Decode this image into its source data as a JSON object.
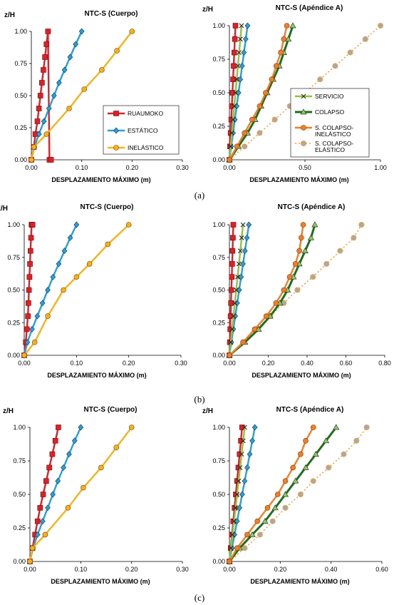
{
  "colors": {
    "ruaumoko": "#d8232a",
    "estatico": "#2a9fd8",
    "inelastico": "#f5b21a",
    "servicio": "#8fc43c",
    "colapso": "#1f6e1f",
    "sc_inelastico": "#f07f2a",
    "sc_elastico": "#f3a040",
    "sc_elastico_marker": "#a8a8a8"
  },
  "chart_data": [
    {
      "panel": "a-left",
      "type": "line",
      "title": "NTC-S (Cuerpo)",
      "xlabel": "DESPLAZAMIENTO MÁXIMO (m)",
      "ylabel": "z/H",
      "xlim": [
        0,
        0.3
      ],
      "ylim": [
        0,
        1
      ],
      "xticks": [
        "0.00",
        "0.10",
        "0.20",
        "0.30"
      ],
      "yticks": [
        "0.00",
        "0.25",
        "0.50",
        "0.75",
        "1.00"
      ],
      "legend": "inside-right",
      "series": [
        {
          "name": "RUAUMOKO",
          "key": "ruaumoko",
          "marker": "square",
          "style": "solid",
          "x": [
            0.0,
            0.005,
            0.008,
            0.012,
            0.015,
            0.018,
            0.021,
            0.024,
            0.027,
            0.03,
            0.033,
            0.036,
            0.039
          ],
          "y": [
            0.0,
            0.1,
            0.2,
            0.3,
            0.4,
            0.5,
            0.6,
            0.7,
            0.8,
            0.9,
            1.0,
            0.0,
            0.0
          ]
        },
        {
          "name": "ESTÁTICO",
          "key": "estatico",
          "marker": "diamond",
          "style": "solid",
          "x": [
            0.0,
            0.006,
            0.015,
            0.025,
            0.035,
            0.045,
            0.055,
            0.066,
            0.077,
            0.088,
            0.1
          ],
          "y": [
            0.0,
            0.1,
            0.2,
            0.3,
            0.4,
            0.5,
            0.6,
            0.7,
            0.8,
            0.9,
            1.0
          ]
        },
        {
          "name": "INELÁSTICO",
          "key": "inelastico",
          "marker": "circle",
          "style": "solid",
          "x": [
            0.0,
            0.005,
            0.03,
            0.075,
            0.105,
            0.14,
            0.17,
            0.2
          ],
          "y": [
            0.0,
            0.1,
            0.2,
            0.4,
            0.55,
            0.7,
            0.85,
            1.0
          ]
        }
      ]
    },
    {
      "panel": "a-right",
      "type": "line",
      "title": "NTC-S (Apéndice A)",
      "xlabel": "DESPLAZAMIENTO MÁXIMO (m)",
      "ylabel": "z/H",
      "xlim": [
        0,
        1
      ],
      "ylim": [
        0,
        1
      ],
      "xticks": [
        "0.00",
        "0.50",
        "1.00"
      ],
      "yticks": [
        "0.00",
        "0.25",
        "0.50",
        "0.75",
        "1.00"
      ],
      "legend": "inside-right",
      "series": [
        {
          "name": "RUAUMOKO",
          "key": "ruaumoko",
          "marker": "square",
          "style": "solid",
          "in_legend": false,
          "x": [
            0.0,
            0.004,
            0.008,
            0.012,
            0.016,
            0.02,
            0.024,
            0.028,
            0.032,
            0.036,
            0.04
          ],
          "y": [
            0.0,
            0.1,
            0.2,
            0.3,
            0.4,
            0.5,
            0.6,
            0.7,
            0.8,
            0.9,
            1.0
          ]
        },
        {
          "name": "ESTÁTICO",
          "key": "estatico",
          "marker": "diamond",
          "style": "solid",
          "in_legend": false,
          "x": [
            0.0,
            0.012,
            0.024,
            0.036,
            0.048,
            0.06,
            0.072,
            0.084,
            0.096,
            0.108,
            0.12
          ],
          "y": [
            0.0,
            0.1,
            0.2,
            0.3,
            0.4,
            0.5,
            0.6,
            0.7,
            0.8,
            0.9,
            1.0
          ]
        },
        {
          "name": "SERVICIO",
          "key": "servicio",
          "marker": "x",
          "style": "solid",
          "x": [
            0.0,
            0.008,
            0.016,
            0.024,
            0.032,
            0.04,
            0.048,
            0.056,
            0.064,
            0.072,
            0.08
          ],
          "y": [
            0.0,
            0.1,
            0.2,
            0.3,
            0.4,
            0.5,
            0.6,
            0.7,
            0.8,
            0.9,
            1.0
          ]
        },
        {
          "name": "COLAPSO",
          "key": "colapso",
          "marker": "triangle",
          "style": "solid",
          "x": [
            0.0,
            0.06,
            0.12,
            0.17,
            0.21,
            0.25,
            0.29,
            0.33,
            0.36,
            0.39,
            0.42
          ],
          "y": [
            0.0,
            0.1,
            0.2,
            0.3,
            0.4,
            0.5,
            0.6,
            0.7,
            0.8,
            0.9,
            1.0
          ]
        },
        {
          "name": "S. COLAPSO-INELÁSTICO",
          "key": "sc_inelastico",
          "marker": "circle",
          "style": "solid",
          "x": [
            0.0,
            0.05,
            0.1,
            0.15,
            0.2,
            0.24,
            0.28,
            0.31,
            0.34,
            0.36,
            0.38
          ],
          "y": [
            0.0,
            0.1,
            0.2,
            0.3,
            0.4,
            0.5,
            0.6,
            0.7,
            0.8,
            0.9,
            1.0
          ]
        },
        {
          "name": "S. COLAPSO-ELÁSTICO",
          "key": "sc_elastico",
          "marker": "circle-gray",
          "style": "dotted",
          "x": [
            0.0,
            0.1,
            0.2,
            0.3,
            0.4,
            0.5,
            0.6,
            0.7,
            0.8,
            0.9,
            1.0
          ],
          "y": [
            0.0,
            0.1,
            0.2,
            0.3,
            0.4,
            0.5,
            0.6,
            0.7,
            0.8,
            0.9,
            1.0
          ]
        }
      ]
    },
    {
      "panel": "b-left",
      "type": "line",
      "title": "NTC-S (Cuerpo)",
      "xlabel": "DESPLAZAMIENTO MÁXIMO (m)",
      "ylabel": "z/H",
      "xlim": [
        0,
        0.3
      ],
      "ylim": [
        0,
        1
      ],
      "xticks": [
        "0.00",
        "0.10",
        "0.20",
        "0.30"
      ],
      "yticks": [
        "0.00",
        "0.25",
        "0.50",
        "0.75",
        "1.00"
      ],
      "legend": "none",
      "series": [
        {
          "name": "RUAUMOKO",
          "key": "ruaumoko",
          "marker": "square",
          "style": "solid",
          "x": [
            0.0,
            0.003,
            0.005,
            0.007,
            0.008,
            0.009,
            0.01,
            0.011,
            0.012,
            0.013,
            0.014,
            0.015,
            0.016
          ],
          "y": [
            0.0,
            0.1,
            0.2,
            0.3,
            0.4,
            0.5,
            0.6,
            0.7,
            0.8,
            0.9,
            1.0,
            1.0,
            1.0
          ]
        },
        {
          "name": "ESTÁTICO",
          "key": "estatico",
          "marker": "diamond",
          "style": "solid",
          "x": [
            0.0,
            0.006,
            0.015,
            0.025,
            0.035,
            0.045,
            0.055,
            0.066,
            0.077,
            0.088,
            0.1
          ],
          "y": [
            0.0,
            0.1,
            0.2,
            0.3,
            0.4,
            0.5,
            0.6,
            0.7,
            0.8,
            0.9,
            1.0
          ]
        },
        {
          "name": "INELÁSTICO",
          "key": "inelastico",
          "marker": "circle",
          "style": "solid",
          "x": [
            0.0,
            0.02,
            0.045,
            0.075,
            0.1,
            0.125,
            0.16,
            0.2
          ],
          "y": [
            0.0,
            0.1,
            0.3,
            0.5,
            0.6,
            0.7,
            0.85,
            1.0
          ]
        }
      ]
    },
    {
      "panel": "b-right",
      "type": "line",
      "title": "NTC-S (Apéndice  A)",
      "xlabel": "DESPLAZAMIENTO MÁXIMO (m)",
      "ylabel": "",
      "xlim": [
        0,
        0.8
      ],
      "ylim": [
        0,
        1
      ],
      "xticks": [
        "0.00",
        "0.20",
        "0.40",
        "0.60",
        "0.80"
      ],
      "yticks": [
        "0.00",
        "0.25",
        "0.50",
        "0.75",
        "1.00"
      ],
      "legend": "none",
      "series": [
        {
          "name": "RUAUMOKO",
          "key": "ruaumoko",
          "marker": "square",
          "style": "solid",
          "x": [
            0.0,
            0.002,
            0.004,
            0.006,
            0.008,
            0.01,
            0.012,
            0.014,
            0.016,
            0.018,
            0.02
          ],
          "y": [
            0.0,
            0.1,
            0.2,
            0.3,
            0.4,
            0.5,
            0.6,
            0.7,
            0.8,
            0.9,
            1.0
          ]
        },
        {
          "name": "ESTÁTICO",
          "key": "estatico",
          "marker": "diamond",
          "style": "solid",
          "x": [
            0.0,
            0.01,
            0.02,
            0.03,
            0.04,
            0.05,
            0.06,
            0.07,
            0.08,
            0.09,
            0.1
          ],
          "y": [
            0.0,
            0.1,
            0.2,
            0.3,
            0.4,
            0.5,
            0.6,
            0.7,
            0.8,
            0.9,
            1.0
          ]
        },
        {
          "name": "SERVICIO",
          "key": "servicio",
          "marker": "x",
          "style": "solid",
          "x": [
            0.0,
            0.007,
            0.014,
            0.021,
            0.028,
            0.035,
            0.042,
            0.049,
            0.056,
            0.063,
            0.07
          ],
          "y": [
            0.0,
            0.1,
            0.2,
            0.3,
            0.4,
            0.5,
            0.6,
            0.7,
            0.8,
            0.9,
            1.0
          ]
        },
        {
          "name": "COLAPSO",
          "key": "colapso",
          "marker": "triangle",
          "style": "solid",
          "x": [
            0.0,
            0.08,
            0.15,
            0.21,
            0.26,
            0.3,
            0.33,
            0.36,
            0.39,
            0.42,
            0.44
          ],
          "y": [
            0.0,
            0.1,
            0.2,
            0.3,
            0.4,
            0.5,
            0.6,
            0.7,
            0.8,
            0.9,
            1.0
          ]
        },
        {
          "name": "S. COLAPSO-INELÁSTICO",
          "key": "sc_inelastico",
          "marker": "circle",
          "style": "solid",
          "x": [
            0.0,
            0.07,
            0.13,
            0.19,
            0.24,
            0.28,
            0.31,
            0.34,
            0.36,
            0.37,
            0.38
          ],
          "y": [
            0.0,
            0.1,
            0.2,
            0.3,
            0.4,
            0.5,
            0.6,
            0.7,
            0.8,
            0.9,
            1.0
          ]
        },
        {
          "name": "S. COLAPSO-ELÁSTICO",
          "key": "sc_elastico",
          "marker": "circle-gray",
          "style": "dotted",
          "x": [
            0.0,
            0.07,
            0.14,
            0.21,
            0.28,
            0.35,
            0.43,
            0.5,
            0.57,
            0.64,
            0.68
          ],
          "y": [
            0.0,
            0.1,
            0.2,
            0.3,
            0.4,
            0.5,
            0.6,
            0.7,
            0.8,
            0.9,
            1.0
          ]
        }
      ]
    },
    {
      "panel": "c-left",
      "type": "line",
      "title": "NTC-S (Cuerpo)",
      "xlabel": "DESPLAZAMIENTO MÁXIMO (m)",
      "ylabel": "z/H",
      "xlim": [
        0,
        0.3
      ],
      "ylim": [
        0,
        1
      ],
      "xticks": [
        "0.00",
        "0.10",
        "0.20",
        "0.30"
      ],
      "yticks": [
        "0.00",
        "0.25",
        "0.50",
        "0.75",
        "1.00"
      ],
      "legend": "none",
      "series": [
        {
          "name": "RUAUMOKO",
          "key": "ruaumoko",
          "marker": "square",
          "style": "solid",
          "x": [
            0.0,
            0.005,
            0.01,
            0.015,
            0.02,
            0.026,
            0.032,
            0.038,
            0.044,
            0.05,
            0.056
          ],
          "y": [
            0.0,
            0.1,
            0.2,
            0.3,
            0.4,
            0.5,
            0.6,
            0.7,
            0.8,
            0.9,
            1.0
          ]
        },
        {
          "name": "ESTÁTICO",
          "key": "estatico",
          "marker": "diamond",
          "style": "solid",
          "x": [
            0.0,
            0.006,
            0.015,
            0.025,
            0.035,
            0.045,
            0.055,
            0.066,
            0.077,
            0.088,
            0.1
          ],
          "y": [
            0.0,
            0.1,
            0.2,
            0.3,
            0.4,
            0.5,
            0.6,
            0.7,
            0.8,
            0.9,
            1.0
          ]
        },
        {
          "name": "INELÁSTICO",
          "key": "inelastico",
          "marker": "circle",
          "style": "solid",
          "x": [
            0.0,
            0.005,
            0.03,
            0.075,
            0.105,
            0.14,
            0.17,
            0.2
          ],
          "y": [
            0.0,
            0.1,
            0.2,
            0.4,
            0.55,
            0.7,
            0.85,
            1.0
          ]
        }
      ]
    },
    {
      "panel": "c-right",
      "type": "line",
      "title": "NTC-S (Apéndice  A)",
      "xlabel": "DESPLAZAMIENTO MÁXIMO (m)",
      "ylabel": "z/H",
      "xlim": [
        0,
        0.6
      ],
      "ylim": [
        0,
        1
      ],
      "xticks": [
        "0.00",
        "0.20",
        "0.40",
        "0.60"
      ],
      "yticks": [
        "0.00",
        "0.25",
        "0.50",
        "0.75",
        "1.00"
      ],
      "legend": "none",
      "series": [
        {
          "name": "RUAUMOKO",
          "key": "ruaumoko",
          "marker": "square",
          "style": "solid",
          "x": [
            0.0,
            0.005,
            0.01,
            0.015,
            0.02,
            0.025,
            0.03,
            0.035,
            0.04,
            0.045,
            0.05
          ],
          "y": [
            0.0,
            0.1,
            0.2,
            0.3,
            0.4,
            0.5,
            0.6,
            0.7,
            0.8,
            0.9,
            1.0
          ]
        },
        {
          "name": "ESTÁTICO",
          "key": "estatico",
          "marker": "diamond",
          "style": "solid",
          "x": [
            0.0,
            0.01,
            0.02,
            0.03,
            0.04,
            0.05,
            0.06,
            0.07,
            0.08,
            0.09,
            0.1
          ],
          "y": [
            0.0,
            0.1,
            0.2,
            0.3,
            0.4,
            0.5,
            0.6,
            0.7,
            0.8,
            0.9,
            1.0
          ]
        },
        {
          "name": "SERVICIO",
          "key": "servicio",
          "marker": "x",
          "style": "solid",
          "x": [
            0.0,
            0.006,
            0.012,
            0.018,
            0.024,
            0.03,
            0.036,
            0.042,
            0.048,
            0.054,
            0.06
          ],
          "y": [
            0.0,
            0.1,
            0.2,
            0.3,
            0.4,
            0.5,
            0.6,
            0.7,
            0.8,
            0.9,
            1.0
          ]
        },
        {
          "name": "COLAPSO",
          "key": "colapso",
          "marker": "triangle",
          "style": "solid",
          "x": [
            0.0,
            0.04,
            0.09,
            0.14,
            0.18,
            0.22,
            0.26,
            0.3,
            0.34,
            0.38,
            0.42
          ],
          "y": [
            0.0,
            0.1,
            0.2,
            0.3,
            0.4,
            0.5,
            0.6,
            0.7,
            0.8,
            0.9,
            1.0
          ]
        },
        {
          "name": "S. COLAPSO-INELÁSTICO",
          "key": "sc_inelastico",
          "marker": "circle",
          "style": "solid",
          "x": [
            0.0,
            0.03,
            0.07,
            0.11,
            0.15,
            0.19,
            0.22,
            0.25,
            0.28,
            0.3,
            0.33
          ],
          "y": [
            0.0,
            0.1,
            0.2,
            0.3,
            0.4,
            0.5,
            0.6,
            0.7,
            0.8,
            0.9,
            1.0
          ]
        },
        {
          "name": "S. COLAPSO-ELÁSTICO",
          "key": "sc_elastico",
          "marker": "circle-gray",
          "style": "dotted",
          "x": [
            0.0,
            0.06,
            0.12,
            0.17,
            0.22,
            0.28,
            0.33,
            0.39,
            0.45,
            0.5,
            0.54
          ],
          "y": [
            0.0,
            0.1,
            0.2,
            0.3,
            0.4,
            0.5,
            0.6,
            0.7,
            0.8,
            0.9,
            1.0
          ]
        }
      ]
    }
  ],
  "captions": [
    "(a)",
    "(b)",
    "(c)"
  ]
}
